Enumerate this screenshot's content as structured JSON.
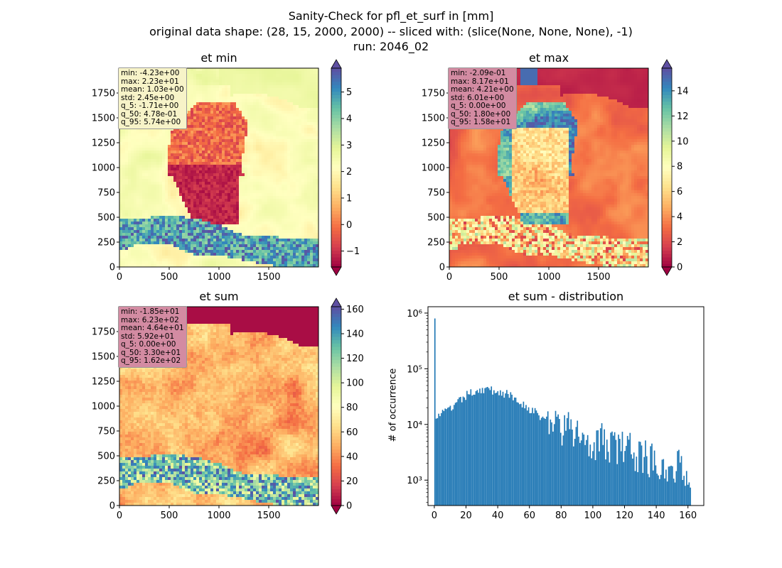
{
  "suptitle": {
    "line1": "Sanity-Check for pfl_et_surf in [mm]",
    "line2": "original data shape: (28, 15, 2000, 2000) -- sliced with: (slice(None, None, None), -1)",
    "line3": "run: 2046_02"
  },
  "colors": {
    "hist_bar": "#1f77b4",
    "statbox_light": "#f7f3c8",
    "statbox_pink": "#d38ba2",
    "cmap": "Spectral",
    "mask_dark": "#9e0142"
  },
  "chart_data": [
    {
      "type": "heatmap",
      "title": "et min",
      "cmap": "Spectral",
      "x_ticks": [
        "0",
        "500",
        "1000",
        "1500"
      ],
      "y_ticks": [
        "0",
        "250",
        "500",
        "750",
        "1000",
        "1250",
        "1500",
        "1750"
      ],
      "xlim": [
        0,
        2000
      ],
      "ylim": [
        0,
        2000
      ],
      "colorbar": {
        "min": -1.6,
        "max": 5.9,
        "ticks": [
          "−1",
          "0",
          "1",
          "2",
          "3",
          "4",
          "5"
        ],
        "tick_values": [
          -1,
          0,
          1,
          2,
          3,
          4,
          5
        ],
        "extend": "both"
      },
      "stats": [
        "min: -4.23e+00",
        "max: 2.23e+01",
        "mean: 1.03e+00",
        "std: 2.45e+00",
        "q_5: -1.71e+00",
        "q_50: 4.78e-01",
        "q_95: 5.74e+00"
      ]
    },
    {
      "type": "heatmap",
      "title": "et max",
      "cmap": "Spectral",
      "x_ticks": [
        "0",
        "500",
        "1000",
        "1500"
      ],
      "y_ticks": [
        "0",
        "250",
        "500",
        "750",
        "1000",
        "1250",
        "1500",
        "1750"
      ],
      "xlim": [
        0,
        2000
      ],
      "ylim": [
        0,
        2000
      ],
      "colorbar": {
        "min": 0,
        "max": 15.8,
        "ticks": [
          "0",
          "2",
          "4",
          "6",
          "8",
          "10",
          "12",
          "14"
        ],
        "tick_values": [
          0,
          2,
          4,
          6,
          8,
          10,
          12,
          14
        ],
        "extend": "both"
      },
      "stats": [
        "min: -2.09e-01",
        "max: 8.17e+01",
        "mean: 4.21e+00",
        "std: 6.01e+00",
        "q_5: 0.00e+00",
        "q_50: 1.80e+00",
        "q_95: 1.58e+01"
      ]
    },
    {
      "type": "heatmap",
      "title": "et sum",
      "cmap": "Spectral",
      "x_ticks": [
        "0",
        "500",
        "1000",
        "1500"
      ],
      "y_ticks": [
        "0",
        "250",
        "500",
        "750",
        "1000",
        "1250",
        "1500",
        "1750"
      ],
      "xlim": [
        0,
        2000
      ],
      "ylim": [
        0,
        2000
      ],
      "colorbar": {
        "min": 0,
        "max": 162,
        "ticks": [
          "0",
          "20",
          "40",
          "60",
          "80",
          "100",
          "120",
          "140",
          "160"
        ],
        "tick_values": [
          0,
          20,
          40,
          60,
          80,
          100,
          120,
          140,
          160
        ],
        "extend": "both"
      },
      "stats": [
        "min: -1.85e+01",
        "max: 6.23e+02",
        "mean: 4.64e+01",
        "std: 5.92e+01",
        "q_5: 0.00e+00",
        "q_50: 3.30e+01",
        "q_95: 1.62e+02"
      ]
    },
    {
      "type": "bar",
      "title": "et sum - distribution",
      "xlabel": "",
      "ylabel": "# of occurrence",
      "yscale": "log",
      "xlim": [
        -4,
        170
      ],
      "ylim": [
        350,
        1300000
      ],
      "x_ticks": [
        "0",
        "20",
        "40",
        "60",
        "80",
        "100",
        "120",
        "140",
        "160"
      ],
      "x_tick_values": [
        0,
        20,
        40,
        60,
        80,
        100,
        120,
        140,
        160
      ],
      "y_ticks": [
        "10³",
        "10⁴",
        "10⁵",
        "10⁶"
      ],
      "y_tick_values": [
        1000,
        10000,
        100000,
        1000000
      ],
      "bin_width": 0.81,
      "bin_start": 0,
      "spike": {
        "x": 0,
        "value": 800000
      },
      "envelope": [
        [
          0,
          14000
        ],
        [
          3,
          15000
        ],
        [
          6,
          16500
        ],
        [
          10,
          19000
        ],
        [
          15,
          25000
        ],
        [
          20,
          33000
        ],
        [
          25,
          40000
        ],
        [
          30,
          43000
        ],
        [
          35,
          41000
        ],
        [
          40,
          39000
        ],
        [
          45,
          35000
        ],
        [
          50,
          30000
        ],
        [
          55,
          24000
        ],
        [
          60,
          19000
        ],
        [
          65,
          15000
        ],
        [
          70,
          12000
        ],
        [
          75,
          10000
        ],
        [
          80,
          8500
        ],
        [
          90,
          6500
        ],
        [
          100,
          5200
        ],
        [
          110,
          4300
        ],
        [
          120,
          3500
        ],
        [
          130,
          2800
        ],
        [
          140,
          2200
        ],
        [
          150,
          1800
        ],
        [
          160,
          1500
        ],
        [
          162,
          1500
        ]
      ]
    }
  ]
}
